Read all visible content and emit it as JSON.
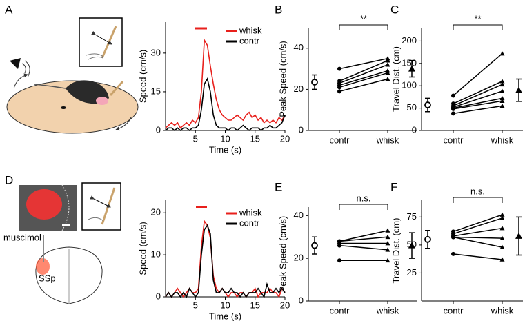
{
  "panel_labels": [
    "A",
    "B",
    "C",
    "D",
    "E",
    "F"
  ],
  "illustration_labels": [
    "muscimol",
    "SSp"
  ],
  "chart_data": [
    {
      "type": "line",
      "xlabel": "Time (s)",
      "ylabel": "Speed (cm/s)",
      "x": [
        0,
        0.5,
        1,
        1.5,
        2,
        2.5,
        3,
        3.5,
        4,
        4.5,
        5,
        5.5,
        6,
        6.5,
        7,
        7.5,
        8,
        8.5,
        9,
        9.5,
        10,
        10.5,
        11,
        11.5,
        12,
        12.5,
        13,
        13.5,
        14,
        14.5,
        15,
        15.5,
        16,
        16.5,
        17,
        17.5,
        18,
        18.5,
        19,
        19.5,
        20
      ],
      "xlim": [
        0,
        20
      ],
      "xticks": [
        5,
        10,
        15,
        20
      ],
      "ylim": [
        0,
        42
      ],
      "yticks": [
        0,
        15,
        30
      ],
      "series": [
        {
          "name": "whisk",
          "color": "#e8201c",
          "values": [
            1,
            2,
            3,
            2,
            3,
            1,
            2,
            3,
            2,
            4,
            3,
            5,
            15,
            35,
            33,
            25,
            18,
            12,
            8,
            6,
            5,
            4,
            4,
            5,
            6,
            5,
            4,
            6,
            7,
            5,
            6,
            4,
            5,
            3,
            4,
            3,
            4,
            3,
            5,
            4,
            6
          ]
        },
        {
          "name": "contr",
          "color": "#000000",
          "values": [
            0,
            1,
            1,
            0,
            1,
            0,
            1,
            1,
            0,
            1,
            1,
            2,
            8,
            18,
            20,
            15,
            6,
            2,
            1,
            1,
            1,
            0,
            1,
            1,
            0,
            1,
            2,
            1,
            0,
            1,
            1,
            1,
            0,
            1,
            1,
            2,
            1,
            1,
            2,
            3,
            6
          ]
        }
      ]
    },
    {
      "type": "paired",
      "ylabel": "Peak Speed (cm/s)",
      "categories": [
        "contr",
        "whisk"
      ],
      "ylim": [
        0,
        50
      ],
      "yticks": [
        0,
        20,
        40
      ],
      "annotation": "**",
      "pairs": [
        [
          30,
          35
        ],
        [
          24,
          34
        ],
        [
          23,
          32
        ],
        [
          22,
          29
        ],
        [
          21,
          28
        ],
        [
          19,
          25
        ]
      ],
      "mean": [
        23.5,
        30
      ],
      "error": [
        3.5,
        4
      ]
    },
    {
      "type": "paired",
      "ylabel": "Travel Dist. (cm)",
      "categories": [
        "contr",
        "whisk"
      ],
      "ylim": [
        0,
        230
      ],
      "yticks": [
        0,
        50,
        100,
        150,
        200
      ],
      "annotation": "**",
      "pairs": [
        [
          78,
          172
        ],
        [
          60,
          110
        ],
        [
          55,
          103
        ],
        [
          52,
          88
        ],
        [
          50,
          72
        ],
        [
          48,
          66
        ],
        [
          38,
          55
        ]
      ],
      "mean": [
        57,
        90
      ],
      "error": [
        15,
        25
      ]
    },
    {
      "type": "line",
      "xlabel": "Time (s)",
      "ylabel": "Speed (cm/s)",
      "x": [
        0,
        0.5,
        1,
        1.5,
        2,
        2.5,
        3,
        3.5,
        4,
        4.5,
        5,
        5.5,
        6,
        6.5,
        7,
        7.5,
        8,
        8.5,
        9,
        9.5,
        10,
        10.5,
        11,
        11.5,
        12,
        12.5,
        13,
        13.5,
        14,
        14.5,
        15,
        15.5,
        16,
        16.5,
        17,
        17.5,
        18,
        18.5,
        19,
        19.5,
        20
      ],
      "xlim": [
        0,
        20
      ],
      "xticks": [
        5,
        10,
        15,
        20
      ],
      "ylim": [
        0,
        23
      ],
      "yticks": [
        0,
        10,
        20
      ],
      "series": [
        {
          "name": "whisk",
          "color": "#e8201c",
          "values": [
            0,
            1,
            0,
            1,
            2,
            1,
            0,
            1,
            2,
            1,
            1,
            2,
            12,
            18,
            17,
            14,
            5,
            2,
            1,
            2,
            1,
            0,
            1,
            1,
            0,
            1,
            1,
            0,
            1,
            1,
            2,
            0,
            1,
            1,
            1,
            2,
            1,
            1,
            0,
            2,
            1
          ]
        },
        {
          "name": "contr",
          "color": "#000000",
          "values": [
            0,
            1,
            0,
            1,
            1,
            0,
            1,
            0,
            2,
            1,
            0,
            1,
            10,
            16,
            17,
            15,
            4,
            1,
            1,
            2,
            1,
            1,
            2,
            1,
            1,
            0,
            1,
            0,
            1,
            1,
            1,
            2,
            1,
            0,
            3,
            1,
            1,
            2,
            1,
            2,
            1
          ]
        }
      ]
    },
    {
      "type": "paired",
      "ylabel": "Peak Speed (cm/s)",
      "categories": [
        "contr",
        "whisk"
      ],
      "ylim": [
        0,
        44
      ],
      "yticks": [
        0,
        20,
        40
      ],
      "annotation": "n.s.",
      "pairs": [
        [
          28,
          33
        ],
        [
          28,
          30
        ],
        [
          27,
          27
        ],
        [
          26,
          24
        ],
        [
          19,
          19
        ]
      ],
      "mean": [
        26,
        26
      ],
      "error": [
        4,
        6
      ]
    },
    {
      "type": "paired",
      "ylabel": "Travel Dist. (cm)",
      "categories": [
        "contr",
        "whisk"
      ],
      "ylim": [
        0,
        90
      ],
      "yticks": [
        25,
        50,
        75
      ],
      "annotation": "n.s.",
      "pairs": [
        [
          62,
          77
        ],
        [
          60,
          74
        ],
        [
          58,
          65
        ],
        [
          57,
          56
        ],
        [
          57,
          48
        ],
        [
          42,
          37
        ]
      ],
      "mean": [
        55,
        58
      ],
      "error": [
        8,
        17
      ]
    }
  ]
}
